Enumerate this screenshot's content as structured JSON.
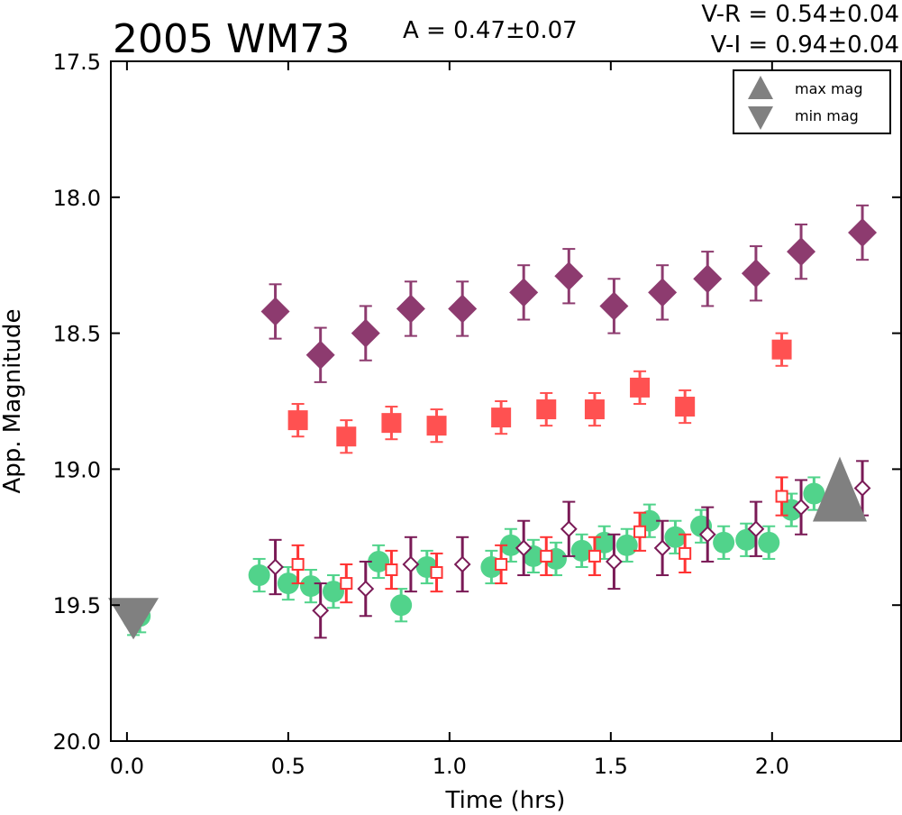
{
  "chart_data": {
    "type": "scatter",
    "title": "2005 WM73",
    "annotations": {
      "amplitude": "A  = 0.47±0.07",
      "v_r": "V-R = 0.54±0.04",
      "v_i": "V-I  = 0.94±0.04"
    },
    "xlabel": "Time (hrs)",
    "ylabel": "App. Magnitude",
    "xlim": [
      -0.05,
      2.4
    ],
    "ylim": [
      20.0,
      17.5
    ],
    "y_inverted": true,
    "xticks": [
      "0.0",
      "0.5",
      "1.0",
      "1.5",
      "2.0"
    ],
    "yticks": [
      "17.5",
      "18.0",
      "18.5",
      "19.0",
      "19.5",
      "20.0"
    ],
    "legend": {
      "position": "top-right",
      "entries": [
        {
          "label": "max mag",
          "marker": "triangle-up",
          "color": "#808080"
        },
        {
          "label": "min mag",
          "marker": "triangle-down",
          "color": "#808080"
        }
      ]
    },
    "series": [
      {
        "marker": "diamond-filled",
        "color": "#7a1a56",
        "x": [
          0.46,
          0.6,
          0.74,
          0.88,
          1.04,
          1.23,
          1.37,
          1.51,
          1.66,
          1.8,
          1.95,
          2.09,
          2.28
        ],
        "y": [
          18.42,
          18.58,
          18.5,
          18.41,
          18.41,
          18.35,
          18.29,
          18.4,
          18.35,
          18.3,
          18.28,
          18.2,
          18.13
        ],
        "err": 0.1
      },
      {
        "marker": "square-filled",
        "color": "#ff3333",
        "x": [
          0.53,
          0.68,
          0.82,
          0.96,
          1.16,
          1.3,
          1.45,
          1.59,
          1.73,
          2.03
        ],
        "y": [
          18.82,
          18.88,
          18.83,
          18.84,
          18.81,
          18.78,
          18.78,
          18.7,
          18.77,
          18.56
        ],
        "err": 0.06
      },
      {
        "marker": "circle-filled",
        "color": "#33cc77",
        "x": [
          0.02,
          0.04,
          0.41,
          0.5,
          0.57,
          0.64,
          0.78,
          0.85,
          0.93,
          1.13,
          1.19,
          1.26,
          1.33,
          1.41,
          1.48,
          1.55,
          1.62,
          1.7,
          1.78,
          1.85,
          1.92,
          1.99,
          2.06,
          2.13
        ],
        "y": [
          19.55,
          19.54,
          19.39,
          19.42,
          19.43,
          19.45,
          19.34,
          19.5,
          19.36,
          19.36,
          19.28,
          19.32,
          19.33,
          19.3,
          19.27,
          19.28,
          19.19,
          19.25,
          19.21,
          19.27,
          19.26,
          19.27,
          19.15,
          19.09
        ],
        "err": 0.06
      },
      {
        "marker": "square-open",
        "color": "#ff3333",
        "x": [
          0.53,
          0.68,
          0.82,
          0.96,
          1.16,
          1.3,
          1.45,
          1.59,
          1.73,
          2.03
        ],
        "y": [
          19.35,
          19.42,
          19.37,
          19.38,
          19.35,
          19.32,
          19.32,
          19.23,
          19.31,
          19.1
        ],
        "err": 0.07
      },
      {
        "marker": "diamond-open",
        "color": "#7a1a56",
        "x": [
          0.46,
          0.6,
          0.74,
          0.88,
          1.04,
          1.23,
          1.37,
          1.51,
          1.66,
          1.8,
          1.95,
          2.09,
          2.28
        ],
        "y": [
          19.36,
          19.52,
          19.44,
          19.35,
          19.35,
          19.29,
          19.22,
          19.34,
          19.29,
          19.24,
          19.22,
          19.14,
          19.07
        ],
        "err": 0.1
      },
      {
        "marker": "triangle-down",
        "color": "#808080",
        "role": "min mag",
        "x": [
          0.02
        ],
        "y": [
          19.52
        ]
      },
      {
        "marker": "triangle-up",
        "color": "#808080",
        "role": "max mag",
        "x": [
          2.21
        ],
        "y": [
          19.1
        ]
      }
    ]
  }
}
